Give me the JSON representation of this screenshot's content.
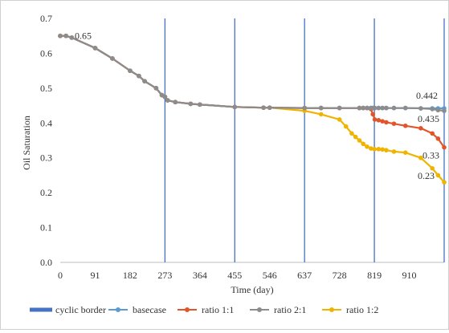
{
  "chart_data": {
    "type": "line",
    "title": "",
    "xlabel": "Time (day)",
    "ylabel": "Oil Saturation",
    "xlim": [
      0,
      1001
    ],
    "ylim": [
      0,
      0.7
    ],
    "x_ticks": [
      0,
      91,
      182,
      273,
      364,
      455,
      546,
      637,
      728,
      819,
      910
    ],
    "y_ticks": [
      0.0,
      0.1,
      0.2,
      0.3,
      0.4,
      0.5,
      0.6,
      0.7
    ],
    "x_tick_labels": [
      "0",
      "91",
      "182",
      "273",
      "364",
      "455",
      "546",
      "637",
      "728",
      "819",
      "910"
    ],
    "y_tick_labels": [
      "0.0",
      "0.1",
      "0.2",
      "0.3",
      "0.4",
      "0.5",
      "0.6",
      "0.7"
    ],
    "grid": false,
    "legend_position": "bottom",
    "cyclic_border_x": [
      273,
      455,
      637,
      819,
      1001
    ],
    "series": [
      {
        "name": "cyclic border",
        "color": "#4472c4",
        "kind": "vertical-lines"
      },
      {
        "name": "basecase",
        "color": "#5b9bd5",
        "x": [
          0,
          15,
          30,
          91,
          136,
          182,
          205,
          220,
          250,
          265,
          273,
          280,
          300,
          340,
          364,
          455,
          530,
          546,
          637,
          680,
          728,
          780,
          790,
          800,
          810,
          815,
          820,
          830,
          840,
          850,
          870,
          900,
          940,
          970,
          985,
          1001
        ],
        "y": [
          0.65,
          0.65,
          0.645,
          0.615,
          0.585,
          0.55,
          0.535,
          0.52,
          0.5,
          0.48,
          0.475,
          0.465,
          0.46,
          0.455,
          0.453,
          0.446,
          0.444,
          0.444,
          0.443,
          0.443,
          0.443,
          0.443,
          0.443,
          0.443,
          0.443,
          0.443,
          0.443,
          0.443,
          0.443,
          0.443,
          0.443,
          0.443,
          0.442,
          0.442,
          0.442,
          0.442
        ]
      },
      {
        "name": "ratio 1:1",
        "color": "#e0562a",
        "x": [
          0,
          15,
          30,
          91,
          136,
          182,
          205,
          220,
          250,
          265,
          273,
          280,
          300,
          340,
          364,
          455,
          530,
          546,
          637,
          680,
          728,
          780,
          790,
          800,
          810,
          815,
          820,
          830,
          840,
          850,
          870,
          900,
          940,
          970,
          985,
          1001
        ],
        "y": [
          0.65,
          0.65,
          0.645,
          0.615,
          0.585,
          0.55,
          0.535,
          0.52,
          0.5,
          0.48,
          0.475,
          0.465,
          0.46,
          0.455,
          0.453,
          0.446,
          0.444,
          0.444,
          0.443,
          0.443,
          0.443,
          0.443,
          0.443,
          0.443,
          0.44,
          0.425,
          0.41,
          0.408,
          0.405,
          0.402,
          0.398,
          0.392,
          0.385,
          0.37,
          0.355,
          0.33
        ]
      },
      {
        "name": "ratio 2:1",
        "color": "#8c8c8c",
        "x": [
          0,
          15,
          30,
          91,
          136,
          182,
          205,
          220,
          250,
          265,
          273,
          280,
          300,
          340,
          364,
          455,
          530,
          546,
          637,
          680,
          728,
          780,
          790,
          800,
          810,
          815,
          820,
          830,
          840,
          850,
          870,
          900,
          940,
          970,
          985,
          1001
        ],
        "y": [
          0.65,
          0.65,
          0.645,
          0.615,
          0.585,
          0.55,
          0.535,
          0.52,
          0.5,
          0.48,
          0.475,
          0.465,
          0.46,
          0.455,
          0.453,
          0.446,
          0.444,
          0.444,
          0.443,
          0.443,
          0.443,
          0.443,
          0.443,
          0.443,
          0.443,
          0.443,
          0.443,
          0.443,
          0.443,
          0.443,
          0.443,
          0.443,
          0.442,
          0.44,
          0.437,
          0.435
        ]
      },
      {
        "name": "ratio 1:2",
        "color": "#f0b400",
        "x": [
          0,
          15,
          30,
          91,
          136,
          182,
          205,
          220,
          250,
          265,
          273,
          280,
          300,
          340,
          364,
          455,
          530,
          546,
          637,
          680,
          728,
          745,
          760,
          770,
          780,
          790,
          800,
          810,
          819,
          830,
          840,
          850,
          870,
          900,
          940,
          970,
          985,
          1001
        ],
        "y": [
          0.65,
          0.65,
          0.645,
          0.615,
          0.585,
          0.55,
          0.535,
          0.52,
          0.5,
          0.48,
          0.475,
          0.465,
          0.46,
          0.455,
          0.453,
          0.446,
          0.444,
          0.444,
          0.435,
          0.425,
          0.41,
          0.39,
          0.37,
          0.36,
          0.35,
          0.34,
          0.332,
          0.327,
          0.325,
          0.325,
          0.324,
          0.322,
          0.318,
          0.315,
          0.3,
          0.27,
          0.25,
          0.23
        ]
      }
    ],
    "annotations": [
      {
        "text": "0.65",
        "x": 0,
        "y": 0.65,
        "anchor": "right-of-point"
      },
      {
        "text": "0.442",
        "x": 1001,
        "y": 0.442,
        "anchor": "above-left"
      },
      {
        "text": "0.435",
        "x": 1001,
        "y": 0.435,
        "anchor": "below-left"
      },
      {
        "text": "0.33",
        "x": 1001,
        "y": 0.33,
        "anchor": "below-left"
      },
      {
        "text": "0.23",
        "x": 1001,
        "y": 0.23,
        "anchor": "left-above"
      }
    ]
  }
}
